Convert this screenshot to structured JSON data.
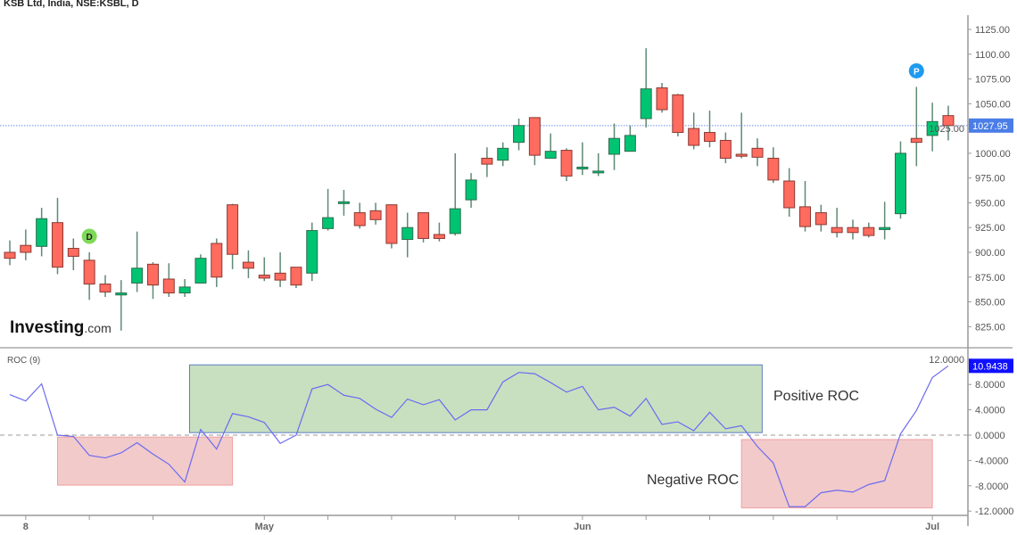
{
  "title": "KSB Ltd, India, NSE:KSBL, D",
  "logo": {
    "main": "Investing",
    "suffix": ".com"
  },
  "colors": {
    "up": "#00c472",
    "down": "#ff6b5e",
    "wick": "#5f8a74",
    "roc_line": "#6b6bf0",
    "last_price_bg": "#4a7de6",
    "roc_last_bg": "#1010ff",
    "positive_box": "#c8e0c0",
    "negative_box": "#f2caca"
  },
  "markers": [
    {
      "label": "D",
      "candle_index": 5,
      "color": "#7ed957"
    },
    {
      "label": "P",
      "candle_index": 57,
      "color": "#1e9bf0"
    }
  ],
  "chart_data": [
    {
      "type": "candlestick",
      "title": "KSB Ltd, India, NSE:KSBL, D",
      "ylim": [
        812,
        1140
      ],
      "y_ticks": [
        "825.00",
        "850.00",
        "875.00",
        "900.00",
        "925.00",
        "950.00",
        "975.00",
        "1000.00",
        "1025.00",
        "1050.00",
        "1075.00",
        "1100.00",
        "1125.00"
      ],
      "last_price": 1027.95,
      "last_price_label": "1027.95",
      "x_ticks": [
        {
          "i": 1,
          "label": "8"
        },
        {
          "i": 5,
          "label": ""
        },
        {
          "i": 9,
          "label": ""
        },
        {
          "i": 16,
          "label": "May"
        },
        {
          "i": 20,
          "label": ""
        },
        {
          "i": 24,
          "label": ""
        },
        {
          "i": 28,
          "label": ""
        },
        {
          "i": 32,
          "label": ""
        },
        {
          "i": 36,
          "label": "Jun"
        },
        {
          "i": 40,
          "label": ""
        },
        {
          "i": 44,
          "label": ""
        },
        {
          "i": 48,
          "label": ""
        },
        {
          "i": 52,
          "label": ""
        },
        {
          "i": 58,
          "label": "Jul"
        }
      ],
      "ohlc": [
        [
          900,
          912,
          887,
          894
        ],
        [
          907,
          923,
          892,
          900
        ],
        [
          906,
          945,
          896,
          934
        ],
        [
          930,
          955,
          878,
          885
        ],
        [
          904,
          914,
          882,
          896
        ],
        [
          892,
          900,
          852,
          868
        ],
        [
          868,
          877,
          855,
          860
        ],
        [
          857,
          872,
          821,
          859
        ],
        [
          869,
          921,
          860,
          884
        ],
        [
          888,
          890,
          853,
          867
        ],
        [
          873,
          889,
          855,
          859
        ],
        [
          859,
          873,
          855,
          865
        ],
        [
          869,
          898,
          869,
          894
        ],
        [
          909,
          914,
          865,
          875
        ],
        [
          948,
          949,
          883,
          898
        ],
        [
          890,
          902,
          874,
          884
        ],
        [
          877,
          895,
          871,
          874
        ],
        [
          879,
          900,
          865,
          872
        ],
        [
          885,
          885,
          864,
          867
        ],
        [
          879,
          930,
          871,
          922
        ],
        [
          924,
          964,
          922,
          935
        ],
        [
          950,
          963,
          937,
          951
        ],
        [
          940,
          950,
          924,
          927
        ],
        [
          942,
          950,
          928,
          933
        ],
        [
          948,
          948,
          904,
          909
        ],
        [
          913,
          940,
          895,
          925
        ],
        [
          940,
          940,
          910,
          914
        ],
        [
          918,
          930,
          911,
          914
        ],
        [
          919,
          1000,
          917,
          944
        ],
        [
          953,
          980,
          945,
          973
        ],
        [
          995,
          1006,
          976,
          989
        ],
        [
          993,
          1011,
          987,
          1005
        ],
        [
          1011,
          1035,
          1003,
          1028
        ],
        [
          1036,
          1036,
          988,
          998
        ],
        [
          995,
          1020,
          995,
          1002
        ],
        [
          1003,
          1005,
          972,
          977
        ],
        [
          985,
          1011,
          978,
          986
        ],
        [
          981,
          1000,
          977,
          982
        ],
        [
          999,
          1030,
          983,
          1015
        ],
        [
          1002,
          1028,
          1002,
          1018
        ],
        [
          1035,
          1106,
          1026,
          1065
        ],
        [
          1066,
          1071,
          1041,
          1044
        ],
        [
          1059,
          1060,
          1017,
          1021
        ],
        [
          1025,
          1041,
          1004,
          1008
        ],
        [
          1021,
          1043,
          1006,
          1012
        ],
        [
          1013,
          1021,
          990,
          995
        ],
        [
          999,
          1041,
          995,
          997
        ],
        [
          1005,
          1015,
          987,
          996
        ],
        [
          995,
          1006,
          970,
          973
        ],
        [
          972,
          985,
          936,
          945
        ],
        [
          946,
          972,
          921,
          926
        ],
        [
          940,
          948,
          921,
          928
        ],
        [
          925,
          945,
          915,
          920
        ],
        [
          925,
          933,
          913,
          920
        ],
        [
          925,
          930,
          915,
          917
        ],
        [
          923,
          951,
          913,
          925
        ],
        [
          939,
          1012,
          934,
          1000
        ],
        [
          1015,
          1067,
          987,
          1011
        ],
        [
          1018,
          1051,
          1002,
          1032
        ],
        [
          1038,
          1048,
          1013,
          1027.95
        ]
      ]
    },
    {
      "type": "line",
      "title": "ROC (9)",
      "ylim": [
        -13.5,
        14
      ],
      "y_ticks": [
        "-12.0000",
        "-8.0000",
        "-4.0000",
        "0.0000",
        "4.0000",
        "8.0000",
        "12.0000"
      ],
      "zero_line": true,
      "last_value_label": "10.9438",
      "values": [
        6.4,
        5.4,
        8.1,
        0.0,
        -0.2,
        -3.2,
        -3.6,
        -2.8,
        -1.2,
        -3.0,
        -4.6,
        -7.4,
        0.9,
        -2.2,
        3.4,
        2.9,
        2.0,
        -1.3,
        0.0,
        7.3,
        8.0,
        6.3,
        5.8,
        4.1,
        2.8,
        5.7,
        4.8,
        5.6,
        2.4,
        4.0,
        4.0,
        8.4,
        9.9,
        9.7,
        8.3,
        6.8,
        7.7,
        4.0,
        4.4,
        3.0,
        5.8,
        1.7,
        2.1,
        0.7,
        3.6,
        1.0,
        1.5,
        -1.8,
        -4.4,
        -11.3,
        -11.3,
        -9.1,
        -8.7,
        -9.0,
        -7.8,
        -7.2,
        0.2,
        3.9,
        9.1,
        10.9438
      ],
      "annotations": [
        {
          "text": "Positive ROC",
          "type": "box",
          "from_index": 11.3,
          "to_index": 47.3,
          "y_range": [
            0.4,
            11.1
          ],
          "fill": "#c8e0c0",
          "stroke": "#5a7fbf"
        },
        {
          "type": "box",
          "from_index": 3,
          "to_index": 14,
          "y_range": [
            -7.9,
            -0.3
          ],
          "fill": "#f2caca",
          "stroke": "#f0a0a0"
        },
        {
          "text": "Negative ROC",
          "type": "box",
          "from_index": 46,
          "to_index": 58,
          "y_range": [
            -11.5,
            -0.7
          ],
          "fill": "#f2caca",
          "stroke": "#f0a0a0"
        }
      ]
    }
  ]
}
